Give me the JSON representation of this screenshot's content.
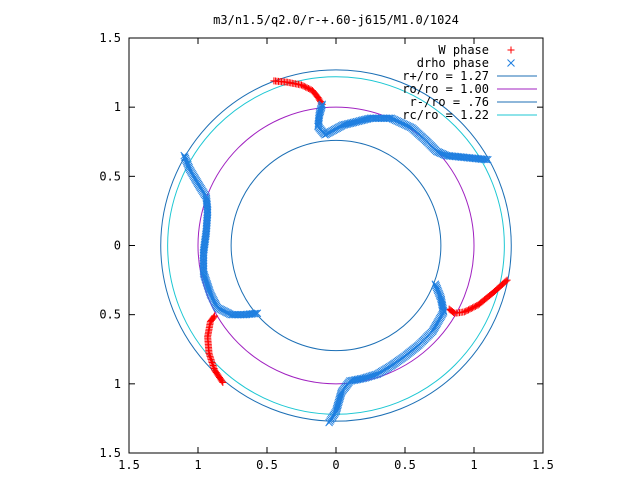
{
  "chart_data": {
    "type": "scatter",
    "title": "m3/n1.5/q2.0/r-+.60-j615/M1.0/1024",
    "xlabel": "",
    "ylabel": "",
    "xlim": [
      -1.5,
      1.5
    ],
    "ylim": [
      -1.5,
      1.5
    ],
    "x_tick_labels": [
      "1.5",
      "1",
      "0.5",
      "0",
      "0.5",
      "1",
      "1.5"
    ],
    "y_tick_labels": [
      "1.5",
      "1",
      "0.5",
      "0",
      "0.5",
      "1",
      "1.5"
    ],
    "tick_values": [
      -1.5,
      -1,
      -0.5,
      0,
      0.5,
      1,
      1.5
    ],
    "grid": false,
    "legend_position": "top-right",
    "circles": [
      {
        "name": "r+/ro = 1.27",
        "radius": 1.27,
        "color": "#1c6fb5"
      },
      {
        "name": "ro/ro = 1.00",
        "radius": 1.0,
        "color": "#a021c0"
      },
      {
        "name": "r-/ro = .76",
        "radius": 0.76,
        "color": "#1c6fb5"
      },
      {
        "name": "rc/ro = 1.22",
        "radius": 1.22,
        "color": "#1cc7d3"
      }
    ],
    "series": [
      {
        "name": "W phase",
        "marker": "plus",
        "color": "#ff0000",
        "arms": [
          [
            [
              -0.45,
              1.19
            ],
            [
              -0.35,
              1.18
            ],
            [
              -0.25,
              1.16
            ],
            [
              -0.17,
              1.12
            ],
            [
              -0.13,
              1.07
            ],
            [
              -0.1,
              1.02
            ]
          ],
          [
            [
              1.24,
              -0.25
            ],
            [
              1.14,
              -0.34
            ],
            [
              1.03,
              -0.43
            ],
            [
              0.93,
              -0.48
            ],
            [
              0.86,
              -0.49
            ],
            [
              0.82,
              -0.46
            ]
          ],
          [
            [
              -0.82,
              -0.99
            ],
            [
              -0.88,
              -0.9
            ],
            [
              -0.92,
              -0.78
            ],
            [
              -0.93,
              -0.66
            ],
            [
              -0.91,
              -0.55
            ],
            [
              -0.88,
              -0.51
            ]
          ]
        ]
      },
      {
        "name": "drho phase",
        "marker": "cross",
        "color": "#1f7fe0",
        "arms": [
          [
            [
              -0.1,
              1.02
            ],
            [
              -0.12,
              0.95
            ],
            [
              -0.13,
              0.86
            ],
            [
              -0.08,
              0.8
            ],
            [
              0.05,
              0.87
            ],
            [
              0.25,
              0.92
            ],
            [
              0.4,
              0.92
            ],
            [
              0.55,
              0.85
            ],
            [
              0.65,
              0.76
            ],
            [
              0.73,
              0.68
            ],
            [
              0.8,
              0.65
            ],
            [
              0.9,
              0.64
            ],
            [
              1.0,
              0.63
            ],
            [
              1.1,
              0.62
            ]
          ],
          [
            [
              -1.1,
              0.65
            ],
            [
              -1.06,
              0.55
            ],
            [
              -0.99,
              0.43
            ],
            [
              -0.94,
              0.35
            ],
            [
              -0.93,
              0.25
            ],
            [
              -0.94,
              0.1
            ],
            [
              -0.96,
              -0.05
            ],
            [
              -0.96,
              -0.2
            ],
            [
              -0.91,
              -0.35
            ],
            [
              -0.86,
              -0.45
            ],
            [
              -0.76,
              -0.5
            ],
            [
              -0.66,
              -0.5
            ],
            [
              -0.57,
              -0.49
            ]
          ],
          [
            [
              -0.05,
              -1.28
            ],
            [
              0.0,
              -1.2
            ],
            [
              0.04,
              -1.06
            ],
            [
              0.1,
              -0.98
            ],
            [
              0.2,
              -0.96
            ],
            [
              0.3,
              -0.93
            ],
            [
              0.4,
              -0.87
            ],
            [
              0.5,
              -0.8
            ],
            [
              0.6,
              -0.72
            ],
            [
              0.7,
              -0.62
            ],
            [
              0.78,
              -0.48
            ],
            [
              0.76,
              -0.38
            ],
            [
              0.72,
              -0.28
            ]
          ]
        ]
      }
    ]
  }
}
